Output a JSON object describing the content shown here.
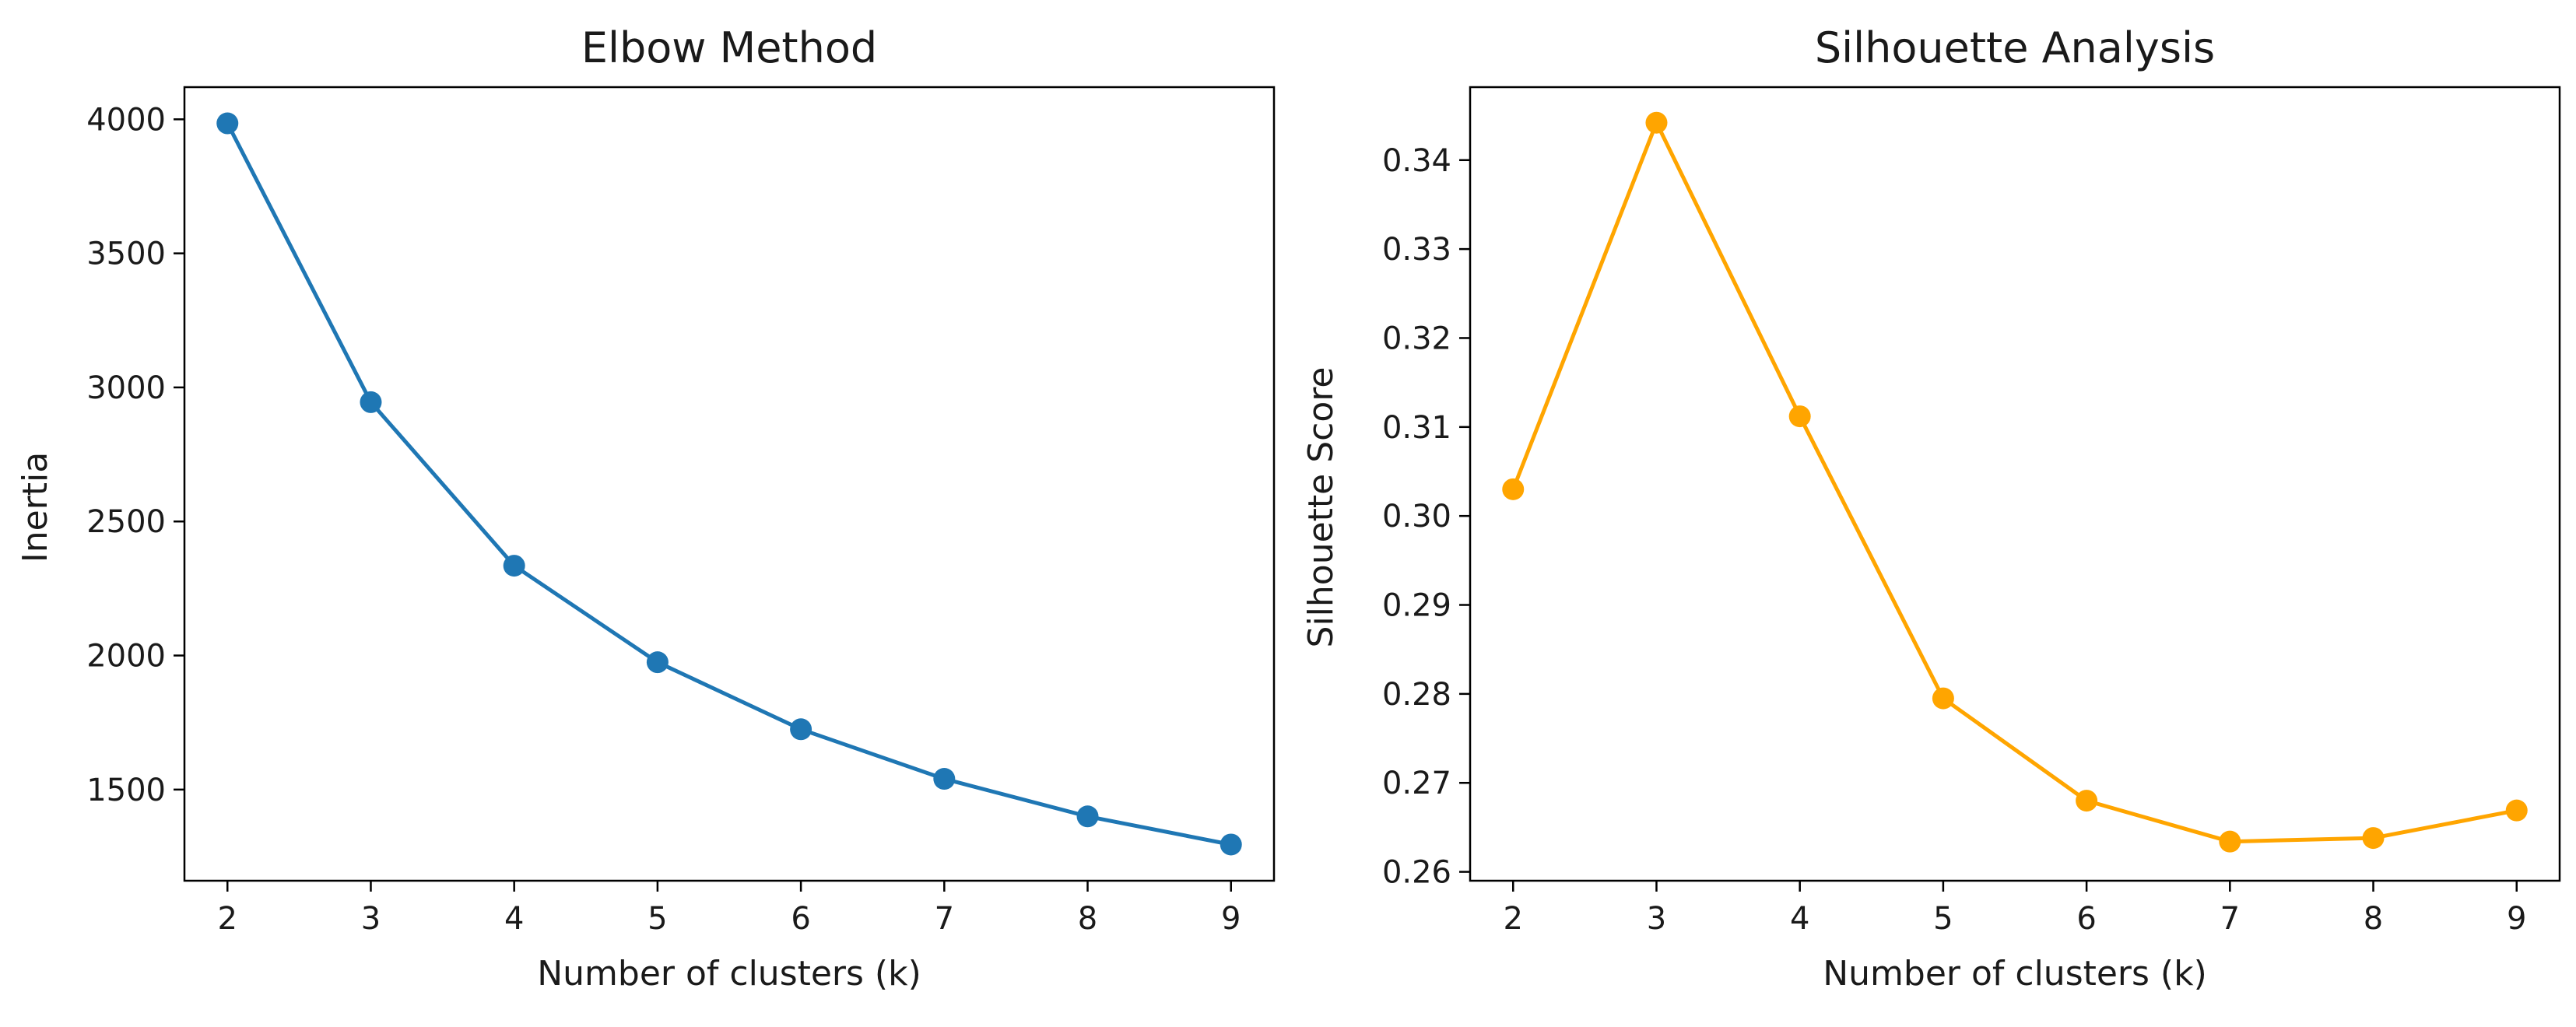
{
  "chart_data": [
    {
      "type": "line",
      "title": "Elbow Method",
      "xlabel": "Number of clusters (k)",
      "ylabel": "Inertia",
      "x": [
        2,
        3,
        4,
        5,
        6,
        7,
        8,
        9
      ],
      "series": [
        {
          "name": "Inertia",
          "color": "#1f77b4",
          "values": [
            3985,
            2945,
            2335,
            1975,
            1725,
            1540,
            1400,
            1295
          ]
        }
      ],
      "xlim": [
        1.7,
        9.3
      ],
      "ylim": [
        1160,
        4120
      ],
      "xticks": [
        2,
        3,
        4,
        5,
        6,
        7,
        8,
        9
      ],
      "xtick_labels": [
        "2",
        "3",
        "4",
        "5",
        "6",
        "7",
        "8",
        "9"
      ],
      "yticks": [
        1500,
        2000,
        2500,
        3000,
        3500,
        4000
      ],
      "ytick_labels": [
        "1500",
        "2000",
        "2500",
        "3000",
        "3500",
        "4000"
      ],
      "marker": "circle",
      "grid": false
    },
    {
      "type": "line",
      "title": "Silhouette Analysis",
      "xlabel": "Number of clusters (k)",
      "ylabel": "Silhouette Score",
      "x": [
        2,
        3,
        4,
        5,
        6,
        7,
        8,
        9
      ],
      "series": [
        {
          "name": "Silhouette Score",
          "color": "#ffa500",
          "values": [
            0.303,
            0.3442,
            0.3112,
            0.2795,
            0.268,
            0.2634,
            0.2638,
            0.2669
          ]
        }
      ],
      "xlim": [
        1.7,
        9.3
      ],
      "ylim": [
        0.259,
        0.3482
      ],
      "xticks": [
        2,
        3,
        4,
        5,
        6,
        7,
        8,
        9
      ],
      "xtick_labels": [
        "2",
        "3",
        "4",
        "5",
        "6",
        "7",
        "8",
        "9"
      ],
      "yticks": [
        0.26,
        0.27,
        0.28,
        0.29,
        0.3,
        0.31,
        0.32,
        0.33,
        0.34
      ],
      "ytick_labels": [
        "0.26",
        "0.27",
        "0.28",
        "0.29",
        "0.30",
        "0.31",
        "0.32",
        "0.33",
        "0.34"
      ],
      "marker": "circle",
      "grid": false
    }
  ]
}
